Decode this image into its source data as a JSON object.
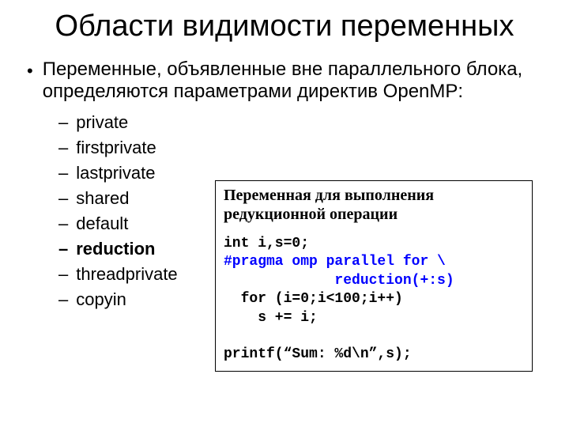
{
  "title": "Области видимости переменных",
  "mainBullet": "Переменные, объявленные вне параллельного блока, определяются параметрами директив OpenMP:",
  "subItems": [
    {
      "text": "private",
      "bold": false
    },
    {
      "text": "firstprivate",
      "bold": false
    },
    {
      "text": "lastprivate",
      "bold": false
    },
    {
      "text": "shared",
      "bold": false
    },
    {
      "text": "default",
      "bold": false
    },
    {
      "text": "reduction",
      "bold": true
    },
    {
      "text": "threadprivate",
      "bold": false
    },
    {
      "text": "copyin",
      "bold": false
    }
  ],
  "codeTitle": "Переменная для выполнения редукционной операции",
  "codeLines": [
    {
      "text": "int i,s=0;",
      "style": "bold"
    },
    {
      "text": "#pragma omp parallel for \\",
      "style": "blue"
    },
    {
      "text": "             reduction(+:s)",
      "style": "blue"
    },
    {
      "text": "  for (i=0;i<100;i++)",
      "style": "bold"
    },
    {
      "text": "    s += i;",
      "style": "bold"
    },
    {
      "text": "",
      "style": ""
    },
    {
      "text": "printf(“Sum: %d\\n”,s);",
      "style": "bold"
    }
  ],
  "colors": {
    "background": "#ffffff",
    "text": "#000000",
    "codeBlue": "#0000ff",
    "border": "#000000"
  }
}
